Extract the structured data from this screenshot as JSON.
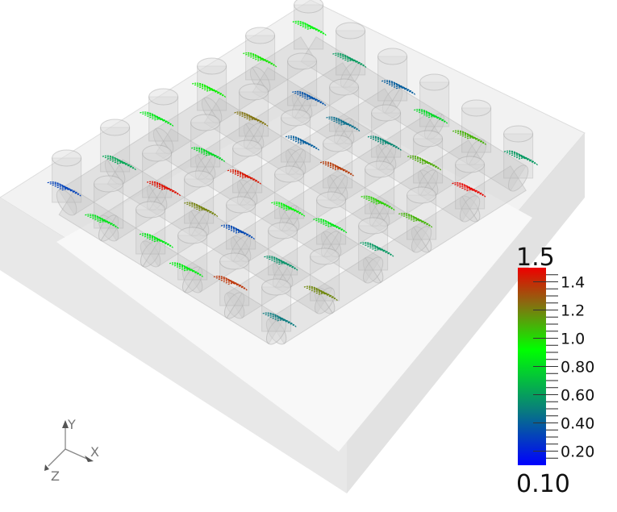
{
  "scalar_bar": {
    "range_max_label": "1.5",
    "range_min_label": "0.10",
    "range": [
      0.1,
      1.5
    ],
    "tick_labels": [
      "1.4",
      "1.2",
      "1.0",
      "0.80",
      "0.60",
      "0.40",
      "0.20"
    ],
    "tick_values": [
      1.4,
      1.2,
      1.0,
      0.8,
      0.6,
      0.4,
      0.2
    ],
    "colormap": [
      {
        "value": 0.1,
        "color": "#0000ff"
      },
      {
        "value": 0.5,
        "color": "#08807a"
      },
      {
        "value": 0.92,
        "color": "#00ff00"
      },
      {
        "value": 1.25,
        "color": "#8a6a10"
      },
      {
        "value": 1.5,
        "color": "#ee0000"
      }
    ]
  },
  "orientation_axes": {
    "x": "X",
    "y": "Y",
    "z": "Z"
  },
  "colors": {
    "box": "#e6e6e6",
    "tube": "#c8c8c8",
    "background": "#ffffff"
  }
}
